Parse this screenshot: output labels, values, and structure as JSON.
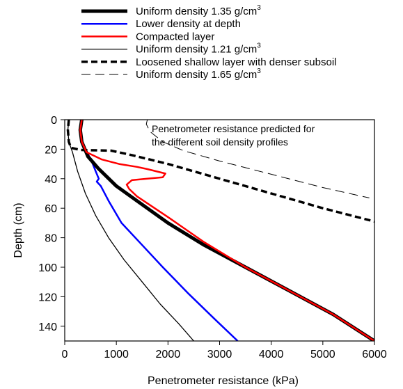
{
  "chart_data": {
    "type": "line",
    "title": "",
    "xlabel": "Penetrometer resistance (kPa)",
    "ylabel": "Depth (cm)",
    "xlim": [
      0,
      6000
    ],
    "ylim": [
      150,
      0
    ],
    "x_ticks": [
      "0",
      "1000",
      "2000",
      "3000",
      "4000",
      "5000",
      "6000"
    ],
    "y_ticks": [
      "0",
      "20",
      "40",
      "60",
      "80",
      "100",
      "120",
      "140"
    ],
    "grid": false,
    "legend_position": "top",
    "annotation": [
      "Penetrometer resistance predicted for",
      "the different soil density profiles"
    ],
    "series": [
      {
        "name": "Uniform density 1.35 g/cm³",
        "color": "#000000",
        "style": "thick-solid",
        "points": [
          [
            330,
            0
          ],
          [
            300,
            7
          ],
          [
            330,
            15
          ],
          [
            450,
            25
          ],
          [
            650,
            33
          ],
          [
            1000,
            45
          ],
          [
            1400,
            55
          ],
          [
            2000,
            70
          ],
          [
            2700,
            85
          ],
          [
            3500,
            100
          ],
          [
            4300,
            115
          ],
          [
            5200,
            132
          ],
          [
            6000,
            150
          ]
        ]
      },
      {
        "name": "Lower density at depth",
        "color": "#0000ff",
        "style": "solid",
        "points": [
          [
            330,
            0
          ],
          [
            300,
            7
          ],
          [
            330,
            15
          ],
          [
            430,
            22
          ],
          [
            520,
            28
          ],
          [
            600,
            35
          ],
          [
            660,
            40
          ],
          [
            620,
            42
          ],
          [
            700,
            45
          ],
          [
            850,
            55
          ],
          [
            1100,
            70
          ],
          [
            1500,
            85
          ],
          [
            1900,
            100
          ],
          [
            2400,
            118
          ],
          [
            2900,
            135
          ],
          [
            3350,
            150
          ]
        ]
      },
      {
        "name": "Compacted layer",
        "color": "#ff0000",
        "style": "solid",
        "points": [
          [
            330,
            0
          ],
          [
            300,
            7
          ],
          [
            330,
            15
          ],
          [
            420,
            22
          ],
          [
            540,
            24
          ],
          [
            720,
            27
          ],
          [
            1050,
            30
          ],
          [
            1400,
            32
          ],
          [
            1600,
            33.5
          ],
          [
            1950,
            36.5
          ],
          [
            1900,
            39
          ],
          [
            1600,
            40
          ],
          [
            1300,
            41
          ],
          [
            1200,
            44
          ],
          [
            1250,
            47
          ],
          [
            1400,
            52
          ],
          [
            2000,
            66
          ],
          [
            2700,
            83
          ],
          [
            3500,
            100
          ],
          [
            4300,
            115
          ],
          [
            5200,
            132
          ],
          [
            6000,
            150
          ]
        ]
      },
      {
        "name": "Uniform density 1.21 g/cm³",
        "color": "#000000",
        "style": "thin-solid",
        "points": [
          [
            80,
            0
          ],
          [
            60,
            7
          ],
          [
            80,
            15
          ],
          [
            150,
            22
          ],
          [
            250,
            35
          ],
          [
            400,
            50
          ],
          [
            600,
            65
          ],
          [
            850,
            80
          ],
          [
            1150,
            95
          ],
          [
            1500,
            110
          ],
          [
            1850,
            125
          ],
          [
            2200,
            138
          ],
          [
            2500,
            150
          ]
        ]
      },
      {
        "name": "Loosened shallow layer with denser subsoil",
        "color": "#000000",
        "style": "thick-dashed",
        "points": [
          [
            80,
            0
          ],
          [
            60,
            7
          ],
          [
            80,
            15
          ],
          [
            120,
            19
          ],
          [
            300,
            20.5
          ],
          [
            900,
            21
          ],
          [
            1300,
            24
          ],
          [
            2000,
            30
          ],
          [
            3000,
            40
          ],
          [
            4000,
            50
          ],
          [
            5000,
            60
          ],
          [
            6000,
            69
          ]
        ]
      },
      {
        "name": "Uniform density 1.65 g/cm³",
        "color": "#000000",
        "style": "thin-dashed",
        "points": [
          [
            1600,
            0
          ],
          [
            1580,
            3
          ],
          [
            1650,
            8
          ],
          [
            1900,
            15
          ],
          [
            2300,
            21
          ],
          [
            3000,
            28
          ],
          [
            4000,
            37
          ],
          [
            5000,
            46
          ],
          [
            5900,
            53
          ]
        ]
      }
    ]
  }
}
